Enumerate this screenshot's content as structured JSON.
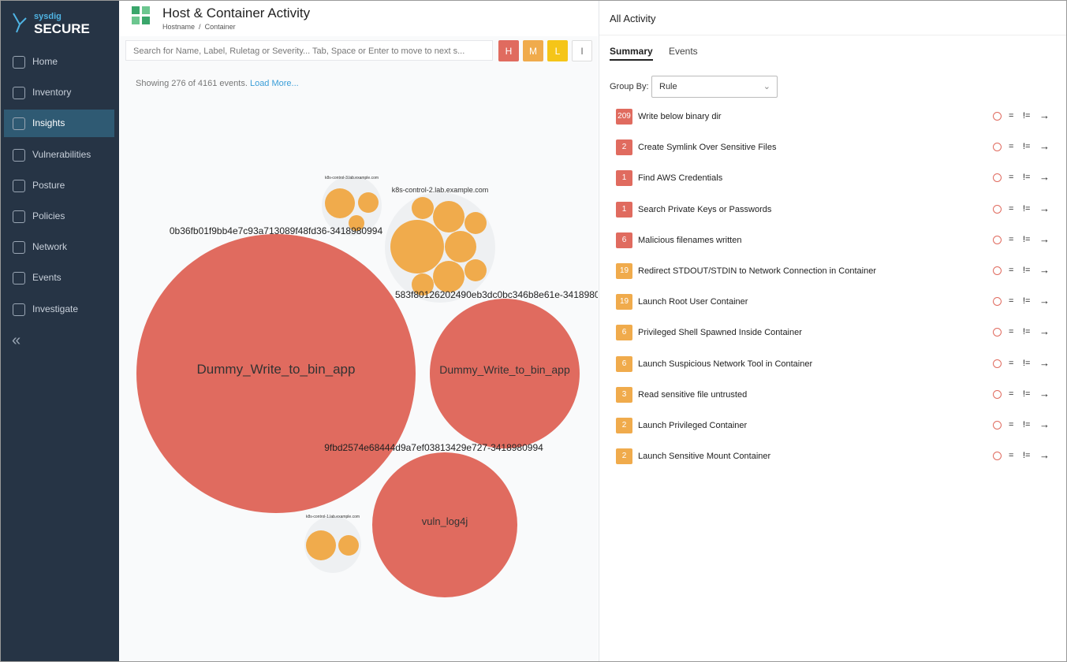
{
  "sidebar": {
    "brand_top": "sysdig",
    "brand": "SECURE",
    "nav": [
      "Home",
      "Inventory",
      "Insights",
      "Vulnerabilities",
      "Posture",
      "Policies",
      "Network",
      "Events",
      "Investigate"
    ]
  },
  "header": {
    "title": "Host & Container Activity",
    "breadcrumb": [
      "Hostname",
      "/",
      "Container"
    ]
  },
  "search": {
    "placeholder": "Search for Name, Label, Ruletag or Severity... Tab, Space or Enter to move to next s...",
    "severity_buttons": [
      "H",
      "M",
      "L",
      "I"
    ]
  },
  "status": {
    "text": "Showing 276 of 4161 events.",
    "link": "Load More..."
  },
  "bubbles": {
    "hosts": [
      "k8s-control-3.lab.example.com",
      "k8s-control-2.lab.example.com",
      "k8s-control-1.lab.example.com"
    ],
    "containers": [
      "0b36fb01f9bb4e7c93a713089f48fd36-3418980994",
      "583f80126202490eb3dc0bc346b8e61e-3418980",
      "9fbd2574e68444d9a7ef03813429e727-3418980994"
    ],
    "apps": [
      "Dummy_Write_to_bin_app",
      "Dummy_Write_to_bin_app",
      "vuln_log4j"
    ]
  },
  "activity": {
    "title": "All Activity",
    "tabs": [
      "Summary",
      "Events"
    ],
    "group_by_label": "Group By:",
    "group_by_value": "Rule",
    "actions": [
      "=",
      "!="
    ],
    "rules": [
      {
        "count": 209,
        "name": "Write below binary dir",
        "color": "#e06b5f"
      },
      {
        "count": 2,
        "name": "Create Symlink Over Sensitive Files",
        "color": "#e06b5f"
      },
      {
        "count": 1,
        "name": "Find AWS Credentials",
        "color": "#e06b5f"
      },
      {
        "count": 1,
        "name": "Search Private Keys or Passwords",
        "color": "#e06b5f"
      },
      {
        "count": 6,
        "name": "Malicious filenames written",
        "color": "#e06b5f"
      },
      {
        "count": 19,
        "name": "Redirect STDOUT/STDIN to Network Connection in Container",
        "color": "#f0ab4c"
      },
      {
        "count": 19,
        "name": "Launch Root User Container",
        "color": "#f0ab4c"
      },
      {
        "count": 6,
        "name": "Privileged Shell Spawned Inside Container",
        "color": "#f0ab4c"
      },
      {
        "count": 6,
        "name": "Launch Suspicious Network Tool in Container",
        "color": "#f0ab4c"
      },
      {
        "count": 3,
        "name": "Read sensitive file untrusted",
        "color": "#f0ab4c"
      },
      {
        "count": 2,
        "name": "Launch Privileged Container",
        "color": "#f0ab4c"
      },
      {
        "count": 2,
        "name": "Launch Sensitive Mount Container",
        "color": "#f0ab4c"
      }
    ]
  }
}
